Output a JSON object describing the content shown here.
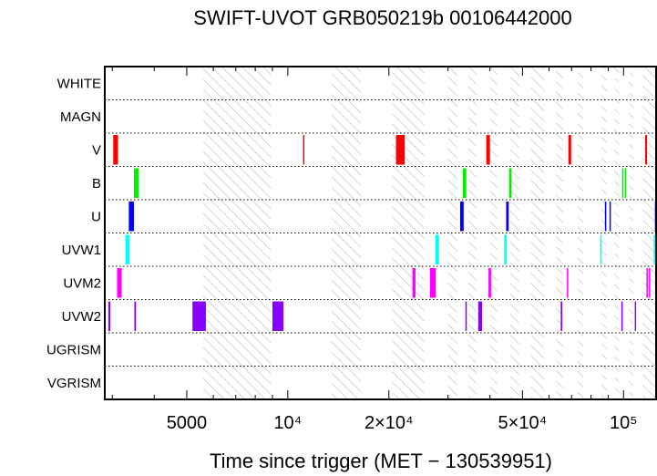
{
  "chart_data": {
    "type": "timeline",
    "title": "SWIFT-UVOT GRB050219b 00106442000",
    "xlabel": "Time since trigger (MET − 130539951)",
    "x_scale": "log",
    "xlim": [
      2850,
      125000
    ],
    "x_major_ticks": [
      {
        "value": 5000,
        "label": "5000"
      },
      {
        "value": 10000,
        "label": "10⁴"
      },
      {
        "value": 20000,
        "label": "2×10⁴"
      },
      {
        "value": 50000,
        "label": "5×10⁴"
      },
      {
        "value": 100000,
        "label": "10⁵"
      }
    ],
    "filters": [
      "WHITE",
      "MAGN",
      "V",
      "B",
      "U",
      "UVW1",
      "UVM2",
      "UVW2",
      "UGRISM",
      "VGRISM"
    ],
    "filter_colors": {
      "V": "#ff0000",
      "B": "#00ee00",
      "U": "#0000ff",
      "UVW1": "#00ffff",
      "UVM2": "#ff00ff",
      "UVW2": "#8800ff"
    },
    "hatched_intervals": [
      [
        5600,
        8900
      ],
      [
        13500,
        16500
      ],
      [
        20500,
        25500
      ],
      [
        30000,
        32000
      ],
      [
        34500,
        36500
      ],
      [
        40000,
        42000
      ],
      [
        46000,
        49000
      ],
      [
        53000,
        58000
      ],
      [
        63000,
        66000
      ],
      [
        73000,
        76000
      ],
      [
        86000,
        89000
      ],
      [
        94000,
        97000
      ],
      [
        104000,
        107000
      ],
      [
        114000,
        125000
      ]
    ],
    "series": [
      {
        "filter": "V",
        "exposures": [
          [
            3020,
            3120
          ],
          [
            11100,
            11200
          ],
          [
            21000,
            22300
          ],
          [
            39000,
            40000
          ],
          [
            68500,
            69800
          ],
          [
            116000,
            117500
          ]
        ]
      },
      {
        "filter": "B",
        "exposures": [
          [
            3480,
            3600
          ],
          [
            33200,
            34000
          ],
          [
            45600,
            46300
          ],
          [
            99000,
            99800
          ],
          [
            100800,
            101600
          ]
        ]
      },
      {
        "filter": "U",
        "exposures": [
          [
            3360,
            3480
          ],
          [
            32600,
            33400
          ],
          [
            44700,
            45500
          ],
          [
            88000,
            88700
          ],
          [
            90800,
            91500
          ],
          [
            124000,
            125000
          ]
        ]
      },
      {
        "filter": "UVW1",
        "exposures": [
          [
            3280,
            3380
          ],
          [
            27500,
            28200
          ],
          [
            44100,
            44900
          ],
          [
            85200,
            86000
          ],
          [
            123000,
            124000
          ]
        ]
      },
      {
        "filter": "UVM2",
        "exposures": [
          [
            3100,
            3200
          ],
          [
            23500,
            24000
          ],
          [
            26500,
            27600
          ],
          [
            39600,
            40300
          ],
          [
            67800,
            68400
          ],
          [
            117000,
            117800
          ],
          [
            119000,
            119800
          ]
        ]
      },
      {
        "filter": "UVW2",
        "exposures": [
          [
            2920,
            2960
          ],
          [
            3490,
            3530
          ],
          [
            5200,
            5700
          ],
          [
            9000,
            9700
          ],
          [
            33800,
            34100
          ],
          [
            36900,
            37900
          ],
          [
            65000,
            65700
          ],
          [
            98500,
            99000
          ],
          [
            108000,
            108800
          ]
        ]
      }
    ]
  }
}
